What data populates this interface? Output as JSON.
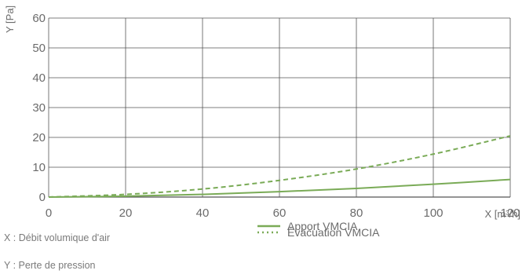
{
  "chart_data": {
    "type": "line",
    "xlabel": "X [m³/h]",
    "ylabel": "Y [Pa]",
    "xlim": [
      0,
      120
    ],
    "ylim": [
      0,
      60
    ],
    "x_ticks": [
      0,
      20,
      40,
      60,
      80,
      100,
      120
    ],
    "y_ticks": [
      0,
      10,
      20,
      30,
      40,
      50,
      60
    ],
    "grid": true,
    "legend_position": "bottom-center",
    "series": [
      {
        "name": "Apport VMCIA",
        "style": "solid",
        "color": "#7aab57",
        "x": [
          0,
          20,
          40,
          60,
          80,
          100,
          120
        ],
        "y": [
          0.0,
          0.3,
          0.9,
          1.8,
          2.9,
          4.3,
          5.9
        ]
      },
      {
        "name": "Évacuation VMCIA",
        "style": "dashed",
        "color": "#7aab57",
        "x": [
          0,
          20,
          40,
          60,
          80,
          100,
          120
        ],
        "y": [
          0.0,
          0.9,
          2.7,
          5.6,
          9.4,
          14.4,
          20.5
        ]
      }
    ]
  },
  "notes": [
    "X : Débit volumique d'air",
    "Y : Perte de pression"
  ],
  "colors": {
    "grid": "#555555",
    "series": "#7aab57",
    "text": "#6b6b6b"
  }
}
